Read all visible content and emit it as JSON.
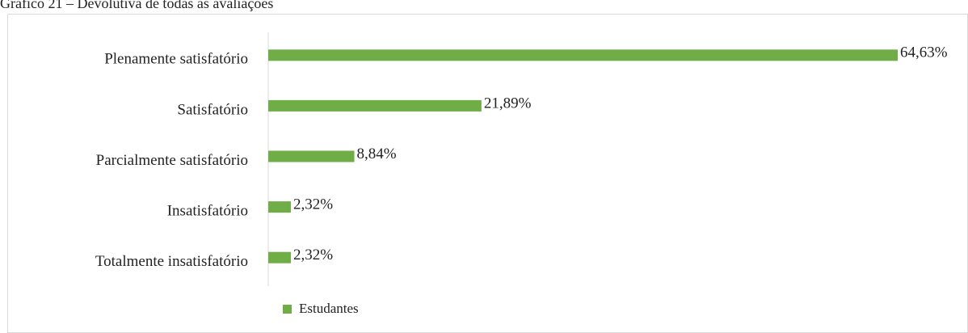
{
  "chart_data": {
    "type": "bar",
    "orientation": "horizontal",
    "title": "Gráfico 21 – Devolutiva de todas as avaliações",
    "categories": [
      "Plenamente satisfatório",
      "Satisfatório",
      "Parcialmente satisfatório",
      "Insatisfatório",
      "Totalmente insatisfatório"
    ],
    "series": [
      {
        "name": "Estudantes",
        "color": "#70ad47",
        "values": [
          64.63,
          21.89,
          8.84,
          2.32,
          2.32
        ],
        "value_labels": [
          "64,63%",
          "21,89%",
          "8,84%",
          "2,32%",
          "2,32%"
        ]
      }
    ],
    "legend": "bottom"
  }
}
